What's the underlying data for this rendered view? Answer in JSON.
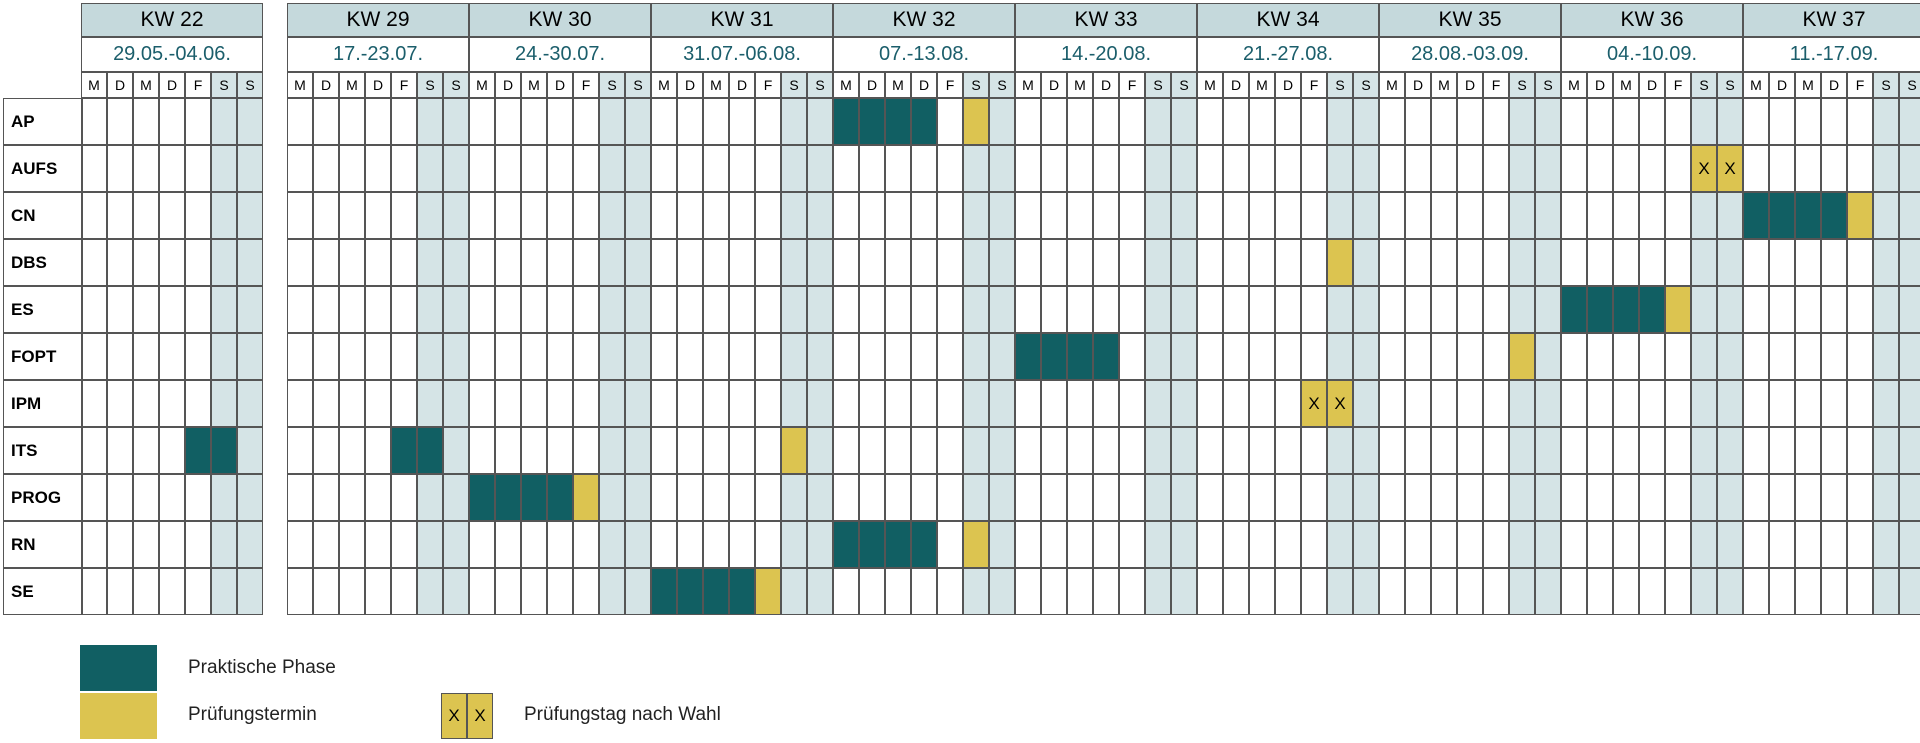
{
  "weeks": [
    {
      "kw": "KW 22",
      "dates": "29.05.-04.06."
    },
    {
      "kw": "KW 29",
      "dates": "17.-23.07."
    },
    {
      "kw": "KW 30",
      "dates": "24.-30.07."
    },
    {
      "kw": "KW 31",
      "dates": "31.07.-06.08."
    },
    {
      "kw": "KW 32",
      "dates": "07.-13.08."
    },
    {
      "kw": "KW 33",
      "dates": "14.-20.08."
    },
    {
      "kw": "KW 34",
      "dates": "21.-27.08."
    },
    {
      "kw": "KW 35",
      "dates": "28.08.-03.09."
    },
    {
      "kw": "KW 36",
      "dates": "04.-10.09."
    },
    {
      "kw": "KW 37",
      "dates": "11.-17.09."
    }
  ],
  "days": [
    "M",
    "D",
    "M",
    "D",
    "F",
    "S",
    "S"
  ],
  "rows": [
    {
      "label": "AP",
      "prak": [
        [
          4,
          0
        ],
        [
          4,
          1
        ],
        [
          4,
          2
        ],
        [
          4,
          3
        ]
      ],
      "pruef": [
        [
          4,
          5
        ]
      ],
      "wahl": []
    },
    {
      "label": "AUFS",
      "prak": [],
      "pruef": [],
      "wahl": [
        [
          8,
          5
        ],
        [
          8,
          6
        ]
      ]
    },
    {
      "label": "CN",
      "prak": [
        [
          9,
          0
        ],
        [
          9,
          1
        ],
        [
          9,
          2
        ],
        [
          9,
          3
        ]
      ],
      "pruef": [
        [
          9,
          4
        ]
      ],
      "wahl": []
    },
    {
      "label": "DBS",
      "prak": [],
      "pruef": [
        [
          6,
          5
        ]
      ],
      "wahl": []
    },
    {
      "label": "ES",
      "prak": [
        [
          8,
          0
        ],
        [
          8,
          1
        ],
        [
          8,
          2
        ],
        [
          8,
          3
        ]
      ],
      "pruef": [
        [
          8,
          4
        ]
      ],
      "wahl": []
    },
    {
      "label": "FOPT",
      "prak": [
        [
          5,
          0
        ],
        [
          5,
          1
        ],
        [
          5,
          2
        ],
        [
          5,
          3
        ]
      ],
      "pruef": [
        [
          7,
          5
        ]
      ],
      "wahl": []
    },
    {
      "label": "IPM",
      "prak": [],
      "pruef": [],
      "wahl": [
        [
          6,
          4
        ],
        [
          6,
          5
        ]
      ]
    },
    {
      "label": "ITS",
      "prak": [
        [
          0,
          4
        ],
        [
          0,
          5
        ],
        [
          1,
          4
        ],
        [
          1,
          5
        ]
      ],
      "pruef": [
        [
          3,
          5
        ]
      ],
      "wahl": []
    },
    {
      "label": "PROG",
      "prak": [
        [
          2,
          0
        ],
        [
          2,
          1
        ],
        [
          2,
          2
        ],
        [
          2,
          3
        ]
      ],
      "pruef": [
        [
          2,
          4
        ]
      ],
      "wahl": []
    },
    {
      "label": "RN",
      "prak": [
        [
          4,
          0
        ],
        [
          4,
          1
        ],
        [
          4,
          2
        ],
        [
          4,
          3
        ]
      ],
      "pruef": [
        [
          4,
          5
        ]
      ],
      "wahl": []
    },
    {
      "label": "SE",
      "prak": [
        [
          3,
          0
        ],
        [
          3,
          1
        ],
        [
          3,
          2
        ],
        [
          3,
          3
        ]
      ],
      "pruef": [
        [
          3,
          4
        ]
      ],
      "wahl": []
    }
  ],
  "wahl_mark": "X",
  "legend": {
    "praktische_phase": "Praktische Phase",
    "pruefungstermin": "Prüfungstermin",
    "pruefungstag": "Prüfungstag nach Wahl",
    "x1": "X",
    "x2": "X"
  },
  "colors": {
    "praktische_phase": "#115f63",
    "pruefungstermin": "#dcc450",
    "weekend": "#d5e4e6",
    "header": "#c5d9dc",
    "date_text": "#1b5e6b"
  }
}
